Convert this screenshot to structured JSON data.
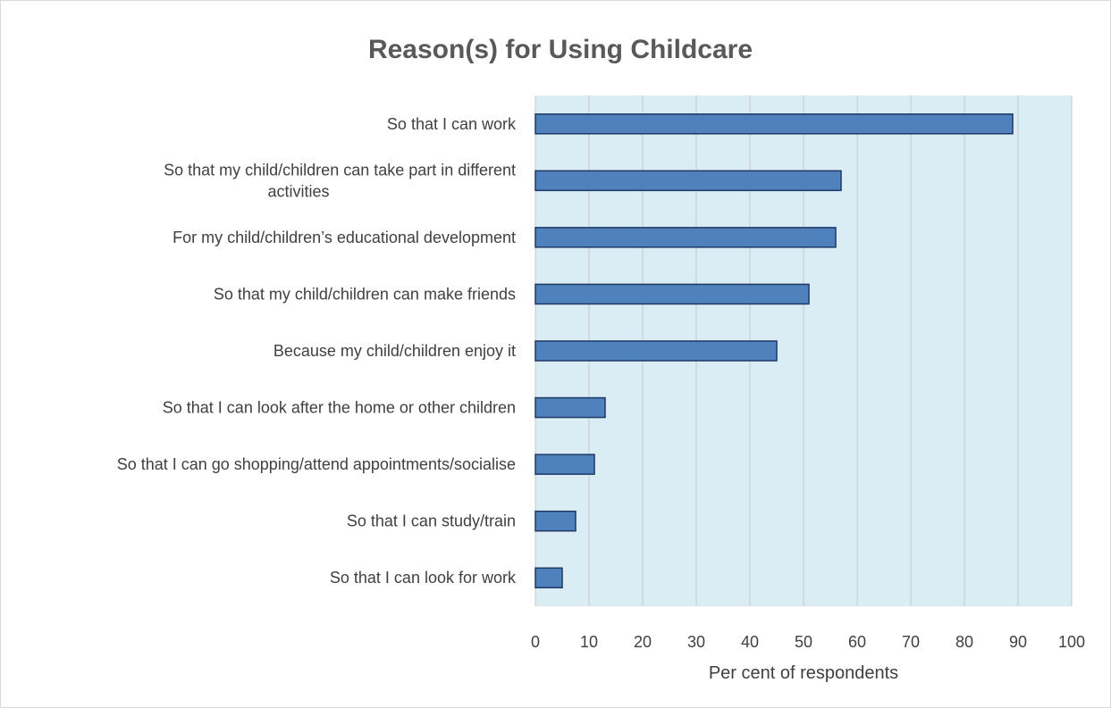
{
  "colors": {
    "plot_background": "#daedf4",
    "bar_fill": "#4f81bd",
    "bar_stroke": "#1f3864",
    "gridline": "#c8c8c8",
    "text": "#404040",
    "title": "#595959"
  },
  "chart_data": {
    "type": "bar",
    "orientation": "horizontal",
    "title": "Reason(s) for Using Childcare",
    "xlabel": "Per cent of respondents",
    "ylabel": "",
    "xlim": [
      0,
      100
    ],
    "x_ticks": [
      0,
      10,
      20,
      30,
      40,
      50,
      60,
      70,
      80,
      90,
      100
    ],
    "grid": true,
    "legend": "none",
    "categories": [
      [
        "So that I can work"
      ],
      [
        "So that my child/children can take part in different",
        "activities"
      ],
      [
        "For my child/children’s educational development"
      ],
      [
        "So that my child/children can make friends"
      ],
      [
        "Because my child/children enjoy it"
      ],
      [
        "So that I can look after the home or other children"
      ],
      [
        "So that I can go shopping/attend appointments/socialise"
      ],
      [
        "So that I can study/train"
      ],
      [
        "So that I can look for work"
      ]
    ],
    "values": [
      89,
      57,
      56,
      51,
      45,
      13,
      11,
      7.5,
      5
    ]
  }
}
